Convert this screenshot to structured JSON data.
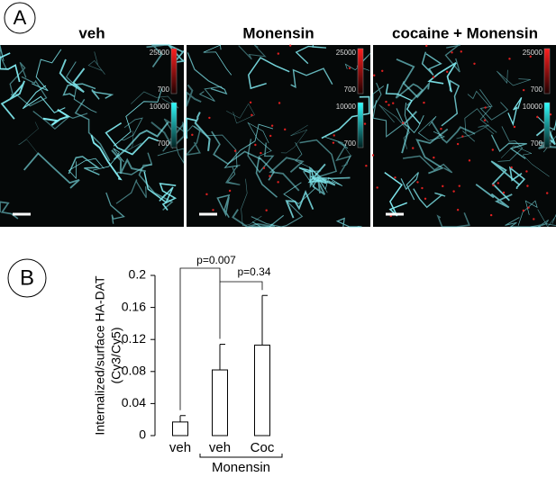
{
  "panel_labels": [
    "A",
    "B"
  ],
  "images": [
    {
      "title": "veh",
      "colorbars": [
        [
          25000,
          700
        ],
        [
          10000,
          700
        ]
      ]
    },
    {
      "title": "Monensin",
      "colorbars": [
        [
          25000,
          700
        ],
        [
          10000,
          700
        ]
      ]
    },
    {
      "title": "cocaine + Monensin",
      "colorbars": [
        [
          25000,
          700
        ],
        [
          10000,
          700
        ]
      ]
    }
  ],
  "chart_data": {
    "type": "bar",
    "y_label": [
      "Internalized/surface HA-DAT",
      "(Cy3/Cy5)"
    ],
    "categories": [
      "veh",
      "veh",
      "Coc"
    ],
    "group_label": "Monensin",
    "values": [
      0.017,
      0.082,
      0.113
    ],
    "errors": [
      0.008,
      0.032,
      0.062
    ],
    "color": "#ffffff",
    "ylim": [
      0,
      0.2
    ],
    "yticks": [
      0,
      0.04,
      0.08,
      0.12,
      0.16,
      0.2
    ],
    "annotations": [
      "p=0.007",
      "p=0.34"
    ]
  }
}
